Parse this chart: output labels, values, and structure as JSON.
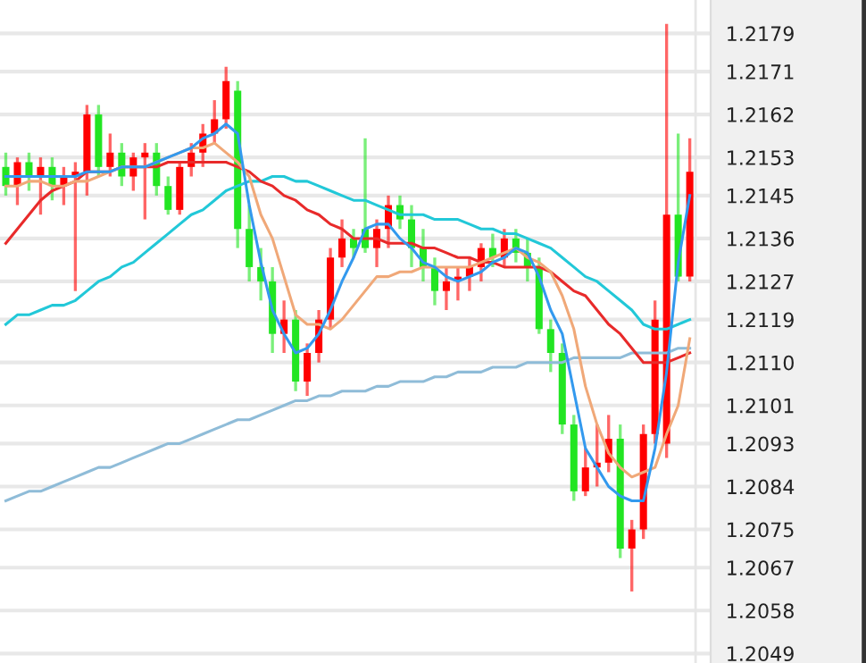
{
  "chart_data": {
    "type": "candlestick",
    "categories": [
      null,
      null,
      null,
      null,
      null,
      null,
      null,
      null,
      null,
      null,
      null,
      null,
      null,
      null,
      null,
      null,
      null,
      null,
      null,
      null,
      null,
      null,
      null,
      null,
      null,
      null,
      null,
      null,
      null,
      null,
      null,
      null,
      null,
      null,
      null,
      null,
      null,
      null,
      null,
      null,
      null,
      null,
      null,
      null,
      null,
      null,
      null,
      null,
      null,
      null,
      null,
      null,
      null,
      null,
      null,
      null,
      null,
      null,
      null,
      null
    ],
    "ohlc": [
      [
        1.2151,
        1.2154,
        1.2145,
        1.2147
      ],
      [
        1.2147,
        1.2153,
        1.2143,
        1.2152
      ],
      [
        1.2152,
        1.2154,
        1.2146,
        1.2149
      ],
      [
        1.2149,
        1.2153,
        1.2141,
        1.2151
      ],
      [
        1.2151,
        1.2153,
        1.2144,
        1.2147
      ],
      [
        1.2147,
        1.2151,
        1.2143,
        1.2149
      ],
      [
        1.2149,
        1.2152,
        1.2125,
        1.215
      ],
      [
        1.215,
        1.2164,
        1.2145,
        1.2162
      ],
      [
        1.2162,
        1.2164,
        1.2149,
        1.2151
      ],
      [
        1.2151,
        1.2158,
        1.2149,
        1.2154
      ],
      [
        1.2154,
        1.2156,
        1.2147,
        1.2149
      ],
      [
        1.2149,
        1.2154,
        1.2146,
        1.2153
      ],
      [
        1.2153,
        1.2156,
        1.214,
        1.2154
      ],
      [
        1.2154,
        1.2156,
        1.2145,
        1.2147
      ],
      [
        1.2147,
        1.2149,
        1.2141,
        1.2142
      ],
      [
        1.2142,
        1.2152,
        1.2141,
        1.2151
      ],
      [
        1.2151,
        1.2156,
        1.2149,
        1.2154
      ],
      [
        1.2154,
        1.216,
        1.2151,
        1.2158
      ],
      [
        1.2158,
        1.2165,
        1.2156,
        1.2161
      ],
      [
        1.2161,
        1.2172,
        1.2159,
        1.2169
      ],
      [
        1.2167,
        1.2169,
        1.2134,
        1.2138
      ],
      [
        1.2138,
        1.2143,
        1.2127,
        1.213
      ],
      [
        1.213,
        1.2134,
        1.2123,
        1.2127
      ],
      [
        1.2127,
        1.213,
        1.2112,
        1.2116
      ],
      [
        1.2116,
        1.2123,
        1.2112,
        1.2119
      ],
      [
        1.2119,
        1.2121,
        1.2104,
        1.2106
      ],
      [
        1.2106,
        1.2114,
        1.2103,
        1.2112
      ],
      [
        1.2112,
        1.2121,
        1.211,
        1.2119
      ],
      [
        1.2119,
        1.2134,
        1.2117,
        1.2132
      ],
      [
        1.2132,
        1.214,
        1.213,
        1.2136
      ],
      [
        1.2136,
        1.2138,
        1.2132,
        1.2134
      ],
      [
        1.2138,
        1.2157,
        1.2133,
        1.2134
      ],
      [
        1.2134,
        1.214,
        1.213,
        1.2138
      ],
      [
        1.2138,
        1.2145,
        1.2134,
        1.2143
      ],
      [
        1.2143,
        1.2145,
        1.2138,
        1.214
      ],
      [
        1.214,
        1.2143,
        1.213,
        1.2134
      ],
      [
        1.2134,
        1.2138,
        1.2127,
        1.213
      ],
      [
        1.213,
        1.2132,
        1.2122,
        1.2125
      ],
      [
        1.2125,
        1.213,
        1.2121,
        1.2127
      ],
      [
        1.2127,
        1.213,
        1.2123,
        1.2128
      ],
      [
        1.2128,
        1.2132,
        1.2125,
        1.213
      ],
      [
        1.213,
        1.2135,
        1.2127,
        1.2134
      ],
      [
        1.2134,
        1.2137,
        1.213,
        1.2132
      ],
      [
        1.2132,
        1.2138,
        1.213,
        1.2136
      ],
      [
        1.2136,
        1.2138,
        1.2131,
        1.2133
      ],
      [
        1.2133,
        1.2136,
        1.2127,
        1.213
      ],
      [
        1.213,
        1.2132,
        1.2116,
        1.2117
      ],
      [
        1.2117,
        1.2119,
        1.2108,
        1.2112
      ],
      [
        1.2112,
        1.2114,
        1.2095,
        1.2097
      ],
      [
        1.2097,
        1.2099,
        1.2081,
        1.2083
      ],
      [
        1.2083,
        1.2092,
        1.2082,
        1.2088
      ],
      [
        1.2088,
        1.2097,
        1.2084,
        1.2089
      ],
      [
        1.2089,
        1.2099,
        1.2087,
        1.2094
      ],
      [
        1.2094,
        1.2097,
        1.2069,
        1.2071
      ],
      [
        1.2071,
        1.2077,
        1.2062,
        1.2075
      ],
      [
        1.2075,
        1.2097,
        1.2073,
        1.2095
      ],
      [
        1.2095,
        1.2123,
        1.2093,
        1.2119
      ],
      [
        1.2093,
        1.2181,
        1.209,
        1.2141
      ],
      [
        1.2141,
        1.2158,
        1.2127,
        1.2128
      ],
      [
        1.2128,
        1.2157,
        1.2127,
        1.215
      ]
    ],
    "colors": [
      "#22e522",
      "#ff0000",
      "#22e522",
      "#ff0000",
      "#22e522",
      "#ff0000",
      "#ff0000",
      "#ff0000",
      "#22e522",
      "#ff0000",
      "#22e522",
      "#ff0000",
      "#ff0000",
      "#22e522",
      "#22e522",
      "#ff0000",
      "#ff0000",
      "#ff0000",
      "#ff0000",
      "#ff0000",
      "#22e522",
      "#22e522",
      "#22e522",
      "#22e522",
      "#ff0000",
      "#22e522",
      "#ff0000",
      "#ff0000",
      "#ff0000",
      "#ff0000",
      "#22e522",
      "#22e522",
      "#ff0000",
      "#ff0000",
      "#22e522",
      "#22e522",
      "#22e522",
      "#22e522",
      "#ff0000",
      "#ff0000",
      "#ff0000",
      "#ff0000",
      "#22e522",
      "#ff0000",
      "#22e522",
      "#22e522",
      "#22e522",
      "#22e522",
      "#22e522",
      "#22e522",
      "#ff0000",
      "#ff0000",
      "#ff0000",
      "#22e522",
      "#ff0000",
      "#ff0000",
      "#ff0000",
      "#ff0000",
      "#22e522",
      "#ff0000"
    ],
    "series": [
      {
        "type": "line",
        "color": "#8fbcd8",
        "values": [
          1.2081,
          1.2082,
          1.2083,
          1.2083,
          1.2084,
          1.2085,
          1.2086,
          1.2087,
          1.2088,
          1.2088,
          1.2089,
          1.209,
          1.2091,
          1.2092,
          1.2093,
          1.2093,
          1.2094,
          1.2095,
          1.2096,
          1.2097,
          1.2098,
          1.2098,
          1.2099,
          1.21,
          1.2101,
          1.2102,
          1.2102,
          1.2103,
          1.2103,
          1.2104,
          1.2104,
          1.2104,
          1.2105,
          1.2105,
          1.2106,
          1.2106,
          1.2106,
          1.2107,
          1.2107,
          1.2108,
          1.2108,
          1.2108,
          1.2109,
          1.2109,
          1.2109,
          1.211,
          1.211,
          1.211,
          1.211,
          1.2111,
          1.2111,
          1.2111,
          1.2111,
          1.2111,
          1.2112,
          1.2112,
          1.2112,
          1.2112,
          1.2113,
          1.2113
        ]
      },
      {
        "type": "line",
        "color": "#22c8d8",
        "values": [
          1.2118,
          1.212,
          1.212,
          1.2121,
          1.2122,
          1.2122,
          1.2123,
          1.2125,
          1.2127,
          1.2128,
          1.213,
          1.2131,
          1.2133,
          1.2135,
          1.2137,
          1.2139,
          1.2141,
          1.2142,
          1.2144,
          1.2146,
          1.2147,
          1.2148,
          1.2148,
          1.2149,
          1.2149,
          1.2148,
          1.2148,
          1.2147,
          1.2146,
          1.2145,
          1.2144,
          1.2144,
          1.2143,
          1.2142,
          1.2141,
          1.2141,
          1.2141,
          1.214,
          1.214,
          1.214,
          1.2139,
          1.2138,
          1.2138,
          1.2137,
          1.2137,
          1.2136,
          1.2135,
          1.2134,
          1.2132,
          1.213,
          1.2128,
          1.2127,
          1.2125,
          1.2123,
          1.2121,
          1.2118,
          1.2117,
          1.2117,
          1.2118,
          1.2119
        ]
      },
      {
        "type": "line",
        "color": "#e82a2a",
        "values": [
          1.2135,
          1.2138,
          1.2141,
          1.2144,
          1.2146,
          1.2147,
          1.2148,
          1.215,
          1.215,
          1.215,
          1.2151,
          1.2151,
          1.2151,
          1.2151,
          1.2152,
          1.2152,
          1.2152,
          1.2152,
          1.2152,
          1.2152,
          1.2151,
          1.215,
          1.2148,
          1.2147,
          1.2145,
          1.2144,
          1.2142,
          1.2141,
          1.2139,
          1.2138,
          1.2136,
          1.2136,
          1.2136,
          1.2135,
          1.2135,
          1.2135,
          1.2134,
          1.2134,
          1.2133,
          1.2132,
          1.2132,
          1.2131,
          1.2131,
          1.213,
          1.213,
          1.213,
          1.213,
          1.2129,
          1.2127,
          1.2125,
          1.2124,
          1.2121,
          1.2118,
          1.2116,
          1.2113,
          1.211,
          1.211,
          1.211,
          1.2111,
          1.2112
        ]
      },
      {
        "type": "line",
        "color": "#f0a878",
        "values": [
          1.2147,
          1.2147,
          1.2148,
          1.2148,
          1.2147,
          1.2147,
          1.2148,
          1.2148,
          1.2149,
          1.215,
          1.2151,
          1.2151,
          1.2151,
          1.2152,
          1.2153,
          1.2154,
          1.2155,
          1.2155,
          1.2156,
          1.2154,
          1.2152,
          1.2149,
          1.2141,
          1.2136,
          1.2128,
          1.212,
          1.2118,
          1.2118,
          1.2117,
          1.2119,
          1.2122,
          1.2125,
          1.2128,
          1.2128,
          1.2129,
          1.2129,
          1.213,
          1.213,
          1.213,
          1.213,
          1.213,
          1.2131,
          1.2132,
          1.2133,
          1.2134,
          1.2132,
          1.2131,
          1.2129,
          1.2124,
          1.2117,
          1.2105,
          1.2097,
          1.2091,
          1.2088,
          1.2086,
          1.2087,
          1.2088,
          1.2095,
          1.2101,
          1.2115
        ]
      },
      {
        "type": "line",
        "color": "#3399ee",
        "values": [
          1.2149,
          1.2149,
          1.2149,
          1.2149,
          1.2149,
          1.2149,
          1.2149,
          1.215,
          1.215,
          1.215,
          1.2151,
          1.2151,
          1.2151,
          1.2152,
          1.2153,
          1.2154,
          1.2155,
          1.2157,
          1.2158,
          1.216,
          1.2158,
          1.2143,
          1.2131,
          1.2121,
          1.2116,
          1.2112,
          1.2113,
          1.2116,
          1.2121,
          1.2127,
          1.2132,
          1.2138,
          1.2139,
          1.2139,
          1.2136,
          1.2134,
          1.2131,
          1.213,
          1.2128,
          1.2127,
          1.2128,
          1.2129,
          1.2131,
          1.2132,
          1.2134,
          1.2133,
          1.2128,
          1.2121,
          1.2116,
          1.2104,
          1.2092,
          1.2088,
          1.2084,
          1.2082,
          1.2081,
          1.2081,
          1.2092,
          1.2108,
          1.2131,
          1.2145
        ]
      }
    ],
    "ylim": [
      1.2047,
      1.2186
    ],
    "yticks": [
      1.2179,
      1.2171,
      1.2162,
      1.2153,
      1.2145,
      1.2136,
      1.2127,
      1.2119,
      {
        "value": 1.211,
        "label": "1.2110"
      },
      1.2101,
      1.2093,
      1.2084,
      1.2075,
      1.2067,
      1.2058,
      1.2049
    ],
    "grid": "y",
    "tick_labels": "y"
  }
}
